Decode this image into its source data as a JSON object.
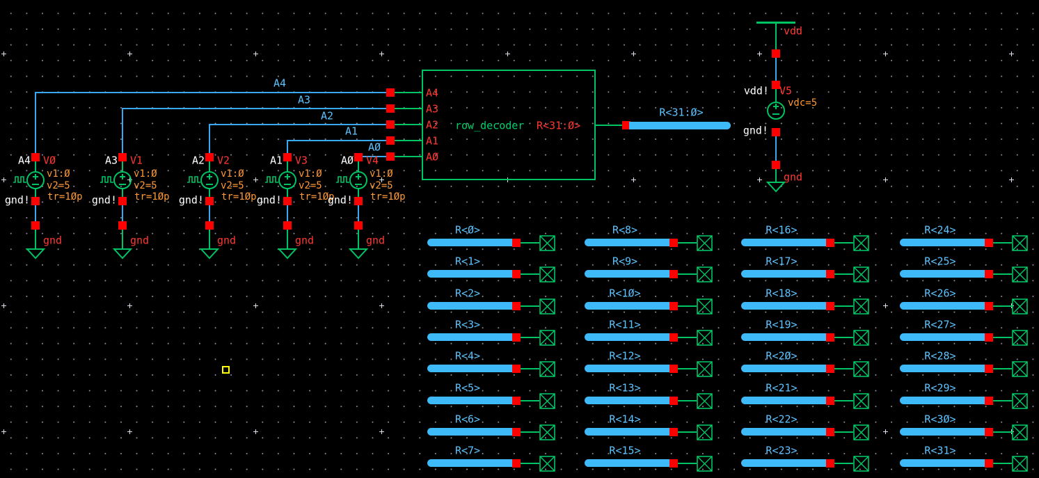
{
  "app": "schematic-canvas",
  "decoder": {
    "instance_label": "row_decoder",
    "output_pin_label": "R<31:Ø>",
    "input_pins": [
      "A4",
      "A3",
      "A2",
      "A1",
      "AØ"
    ],
    "output_net_label": "R<31:Ø>"
  },
  "address_wires": [
    "A4",
    "A3",
    "A2",
    "A1",
    "AØ"
  ],
  "sources": [
    {
      "net": "A4",
      "name": "VØ",
      "v1": "v1:Ø",
      "v2": "v2=5",
      "tr": "tr=1Øp",
      "gnd_node": "gnd!",
      "gnd_symbol": "gnd"
    },
    {
      "net": "A3",
      "name": "V1",
      "v1": "v1:Ø",
      "v2": "v2=5",
      "tr": "tr=1Øp",
      "gnd_node": "gnd!",
      "gnd_symbol": "gnd"
    },
    {
      "net": "A2",
      "name": "V2",
      "v1": "v1:Ø",
      "v2": "v2=5",
      "tr": "tr=1Øp",
      "gnd_node": "gnd!",
      "gnd_symbol": "gnd"
    },
    {
      "net": "A1",
      "name": "V3",
      "v1": "v1:Ø",
      "v2": "v2=5",
      "tr": "tr=1Øp",
      "gnd_node": "gnd!",
      "gnd_symbol": "gnd"
    },
    {
      "net": "AØ",
      "name": "V4",
      "v1": "v1:Ø",
      "v2": "v2=5",
      "tr": "tr=1Øp",
      "gnd_node": "gnd!",
      "gnd_symbol": "gnd"
    }
  ],
  "supply": {
    "rail_label": "vdd",
    "net_label": "vdd!",
    "name": "V5",
    "param": "vdc=5",
    "gnd_node": "gnd!",
    "gnd_symbol": "gnd"
  },
  "taps": [
    "R<Ø>",
    "R<1>",
    "R<2>",
    "R<3>",
    "R<4>",
    "R<5>",
    "R<6>",
    "R<7>",
    "R<8>",
    "R<9>",
    "R<1Ø>",
    "R<11>",
    "R<12>",
    "R<13>",
    "R<14>",
    "R<15>",
    "R<16>",
    "R<17>",
    "R<18>",
    "R<19>",
    "R<2Ø>",
    "R<21>",
    "R<22>",
    "R<23>",
    "R<24>",
    "R<25>",
    "R<26>",
    "R<27>",
    "R<28>",
    "R<29>",
    "R<3Ø>",
    "R<31>"
  ],
  "colors": {
    "background": "#000000",
    "wire_blue": "#38a8f0",
    "bus_blue": "#3dbaf7",
    "net_label_blue": "#5cc3ff",
    "symbol_green": "#00c364",
    "pin_red": "#ff0000",
    "text_red": "#ff3832",
    "param_orange": "#ff9933",
    "net_text_white": "#ffffff",
    "grid_dot": "#8d8d9e",
    "origin_yellow": "#ffff00"
  }
}
